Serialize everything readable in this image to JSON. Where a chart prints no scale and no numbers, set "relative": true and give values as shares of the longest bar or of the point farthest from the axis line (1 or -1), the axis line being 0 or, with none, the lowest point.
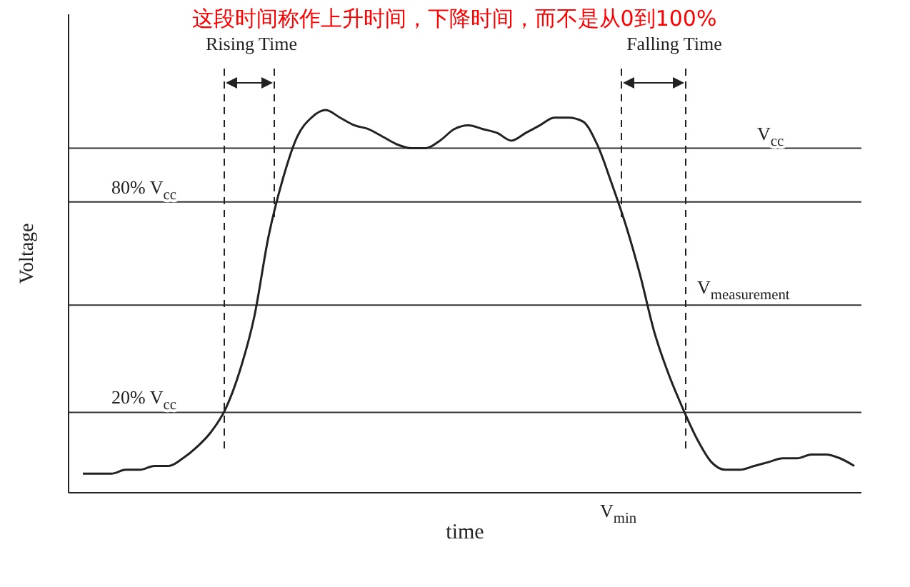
{
  "chart_data": {
    "type": "line",
    "title": "这段时间称作上升时间，下降时间，而不是从0到100%",
    "xlabel": "time",
    "ylabel": "Voltage",
    "relative": true,
    "marker": "none",
    "line_style": "solid",
    "categories": [
      null,
      null,
      null,
      null,
      null,
      null,
      null,
      null,
      null,
      null,
      null,
      null,
      null,
      null,
      null,
      null,
      null,
      null,
      null,
      null,
      null,
      null,
      null,
      null,
      null,
      null,
      null,
      null,
      null,
      null,
      null,
      null,
      null,
      null,
      null,
      null,
      null,
      null,
      null,
      null,
      null,
      null,
      null,
      null,
      null,
      null,
      null,
      null,
      null,
      null,
      null,
      null,
      null,
      null,
      null
    ],
    "series": [
      {
        "color": "#222222",
        "values": [
          0.05,
          0.05,
          0.05,
          0.06,
          0.06,
          0.07,
          0.07,
          0.09,
          0.12,
          0.16,
          0.22,
          0.32,
          0.46,
          0.67,
          0.82,
          0.93,
          0.98,
          1,
          0.98,
          0.96,
          0.95,
          0.93,
          0.91,
          0.9,
          0.9,
          0.92,
          0.95,
          0.96,
          0.95,
          0.94,
          0.92,
          0.94,
          0.96,
          0.98,
          0.98,
          0.97,
          0.91,
          0.81,
          0.7,
          0.57,
          0.42,
          0.31,
          0.22,
          0.14,
          0.08,
          0.06,
          0.06,
          0.07,
          0.08,
          0.09,
          0.09,
          0.1,
          0.1,
          0.09,
          0.07
        ]
      }
    ],
    "ref_lines": [
      {
        "axis": "y",
        "value": 0.9,
        "label": "V$_{cc}$"
      },
      {
        "axis": "y",
        "value": 0.76,
        "label": "80% V$_{cc}$"
      },
      {
        "axis": "y",
        "value": 0.49,
        "label": "V$_{measurement}$"
      },
      {
        "axis": "y",
        "value": 0.21,
        "label": "20% V$_{cc}$"
      }
    ],
    "annotations": [
      "Rising Time",
      "Falling Time",
      "V$_{min}$"
    ]
  }
}
